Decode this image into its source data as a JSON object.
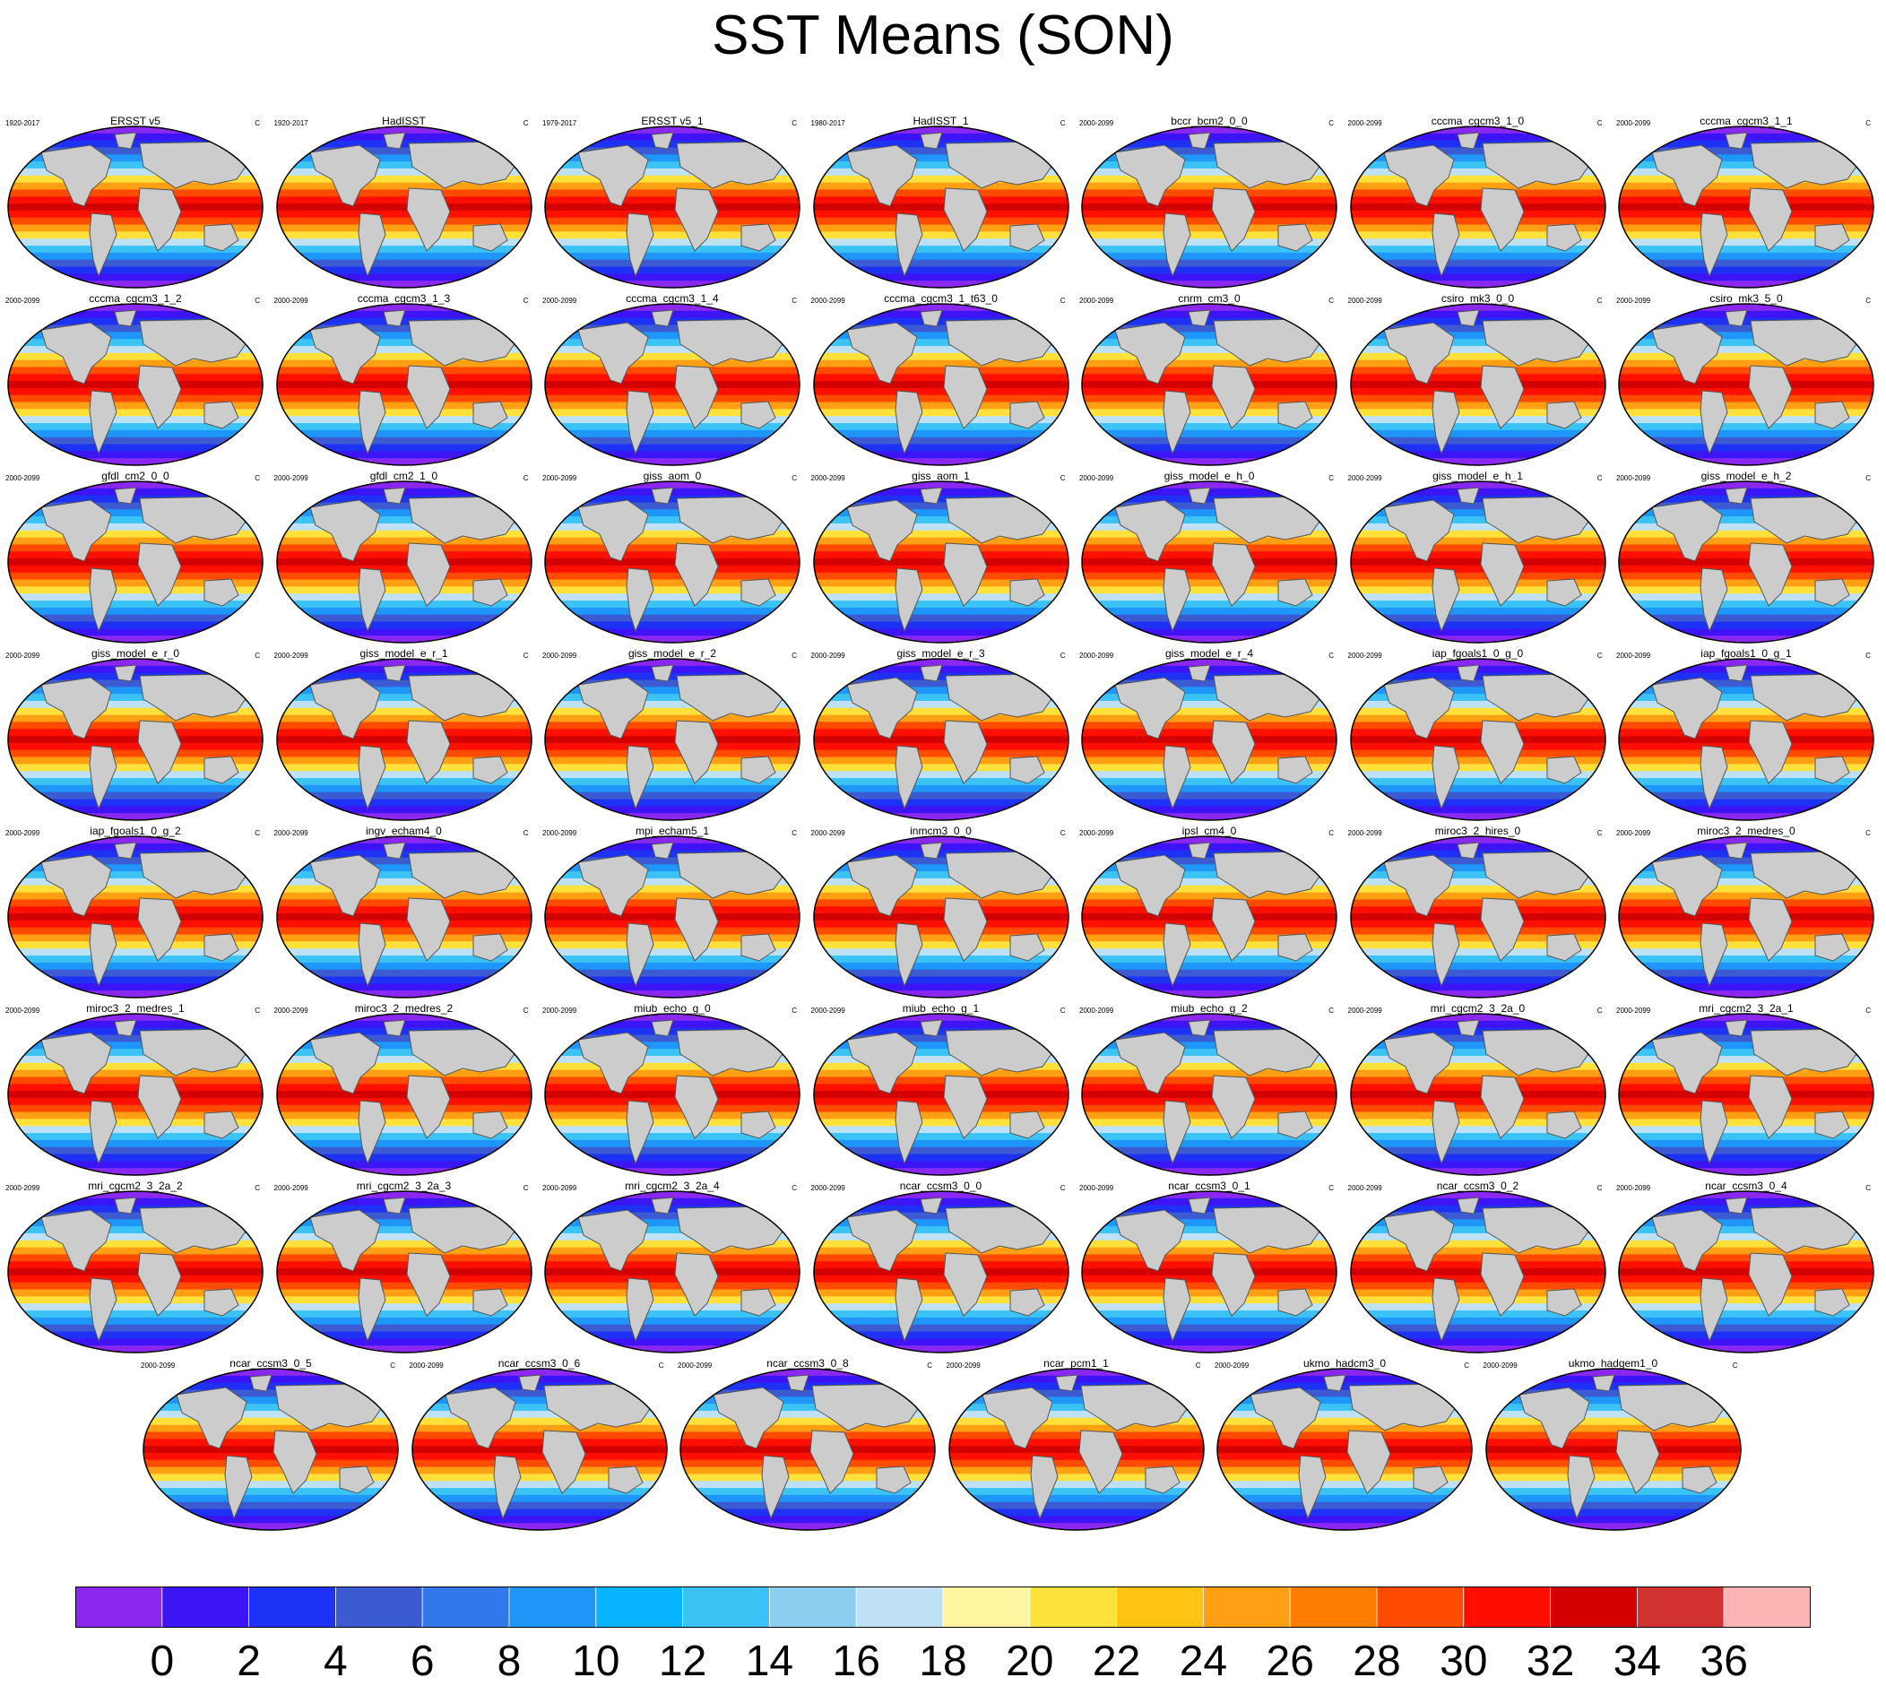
{
  "title": "SST Means (SON)",
  "unit": "C",
  "colorbar": {
    "ticks": [
      "0",
      "2",
      "4",
      "6",
      "8",
      "10",
      "12",
      "14",
      "16",
      "18",
      "20",
      "22",
      "24",
      "26",
      "28",
      "30",
      "32",
      "34",
      "36"
    ],
    "colors": [
      "#8a28f0",
      "#3c14f5",
      "#1e32f5",
      "#3c5ad2",
      "#3278eb",
      "#1e96fa",
      "#08b4ff",
      "#3cc3f5",
      "#8ccdf0",
      "#bee1f5",
      "#fff5a0",
      "#ffe13c",
      "#ffc314",
      "#ffa014",
      "#ff7d00",
      "#ff4b00",
      "#ff0f00",
      "#d20000",
      "#d23232",
      "#ffb4b4"
    ]
  },
  "chart_data": {
    "type": "heatmap",
    "title": "SST Means (SON)",
    "colorbar_ticks": [
      0,
      2,
      4,
      6,
      8,
      10,
      12,
      14,
      16,
      18,
      20,
      22,
      24,
      26,
      28,
      30,
      32,
      34,
      36
    ],
    "units": "C",
    "panels": [
      {
        "name": "ERSST v5",
        "period": "1920-2017"
      },
      {
        "name": "HadISST",
        "period": "1920-2017"
      },
      {
        "name": "ERSST v5_1",
        "period": "1979-2017"
      },
      {
        "name": "HadISST_1",
        "period": "1980-2017"
      },
      {
        "name": "bccr_bcm2_0_0",
        "period": "2000-2099"
      },
      {
        "name": "cccma_cgcm3_1_0",
        "period": "2000-2099"
      },
      {
        "name": "cccma_cgcm3_1_1",
        "period": "2000-2099"
      },
      {
        "name": "cccma_cgcm3_1_2",
        "period": "2000-2099"
      },
      {
        "name": "cccma_cgcm3_1_3",
        "period": "2000-2099"
      },
      {
        "name": "cccma_cgcm3_1_4",
        "period": "2000-2099"
      },
      {
        "name": "cccma_cgcm3_1_t63_0",
        "period": "2000-2099"
      },
      {
        "name": "cnrm_cm3_0",
        "period": "2000-2099"
      },
      {
        "name": "csiro_mk3_0_0",
        "period": "2000-2099"
      },
      {
        "name": "csiro_mk3_5_0",
        "period": "2000-2099"
      },
      {
        "name": "gfdl_cm2_0_0",
        "period": "2000-2099"
      },
      {
        "name": "gfdl_cm2_1_0",
        "period": "2000-2099"
      },
      {
        "name": "giss_aom_0",
        "period": "2000-2099"
      },
      {
        "name": "giss_aom_1",
        "period": "2000-2099"
      },
      {
        "name": "giss_model_e_h_0",
        "period": "2000-2099"
      },
      {
        "name": "giss_model_e_h_1",
        "period": "2000-2099"
      },
      {
        "name": "giss_model_e_h_2",
        "period": "2000-2099"
      },
      {
        "name": "giss_model_e_r_0",
        "period": "2000-2099"
      },
      {
        "name": "giss_model_e_r_1",
        "period": "2000-2099"
      },
      {
        "name": "giss_model_e_r_2",
        "period": "2000-2099"
      },
      {
        "name": "giss_model_e_r_3",
        "period": "2000-2099"
      },
      {
        "name": "giss_model_e_r_4",
        "period": "2000-2099"
      },
      {
        "name": "iap_fgoals1_0_g_0",
        "period": "2000-2099"
      },
      {
        "name": "iap_fgoals1_0_g_1",
        "period": "2000-2099"
      },
      {
        "name": "iap_fgoals1_0_g_2",
        "period": "2000-2099"
      },
      {
        "name": "ingv_echam4_0",
        "period": "2000-2099"
      },
      {
        "name": "mpi_echam5_1",
        "period": "2000-2099"
      },
      {
        "name": "inmcm3_0_0",
        "period": "2000-2099"
      },
      {
        "name": "ipsl_cm4_0",
        "period": "2000-2099"
      },
      {
        "name": "miroc3_2_hires_0",
        "period": "2000-2099"
      },
      {
        "name": "miroc3_2_medres_0",
        "period": "2000-2099"
      },
      {
        "name": "miroc3_2_medres_1",
        "period": "2000-2099"
      },
      {
        "name": "miroc3_2_medres_2",
        "period": "2000-2099"
      },
      {
        "name": "miub_echo_g_0",
        "period": "2000-2099"
      },
      {
        "name": "miub_echo_g_1",
        "period": "2000-2099"
      },
      {
        "name": "miub_echo_g_2",
        "period": "2000-2099"
      },
      {
        "name": "mri_cgcm2_3_2a_0",
        "period": "2000-2099"
      },
      {
        "name": "mri_cgcm2_3_2a_1",
        "period": "2000-2099"
      },
      {
        "name": "mri_cgcm2_3_2a_2",
        "period": "2000-2099"
      },
      {
        "name": "mri_cgcm2_3_2a_3",
        "period": "2000-2099"
      },
      {
        "name": "mri_cgcm2_3_2a_4",
        "period": "2000-2099"
      },
      {
        "name": "ncar_ccsm3_0_0",
        "period": "2000-2099"
      },
      {
        "name": "ncar_ccsm3_0_1",
        "period": "2000-2099"
      },
      {
        "name": "ncar_ccsm3_0_2",
        "period": "2000-2099"
      },
      {
        "name": "ncar_ccsm3_0_4",
        "period": "2000-2099"
      },
      {
        "name": "ncar_ccsm3_0_5",
        "period": "2000-2099"
      },
      {
        "name": "ncar_ccsm3_0_6",
        "period": "2000-2099"
      },
      {
        "name": "ncar_ccsm3_0_8",
        "period": "2000-2099"
      },
      {
        "name": "ncar_pcm1_1",
        "period": "2000-2099"
      },
      {
        "name": "ukmo_hadcm3_0",
        "period": "2000-2099"
      },
      {
        "name": "ukmo_hadgem1_0",
        "period": "2000-2099"
      }
    ]
  }
}
